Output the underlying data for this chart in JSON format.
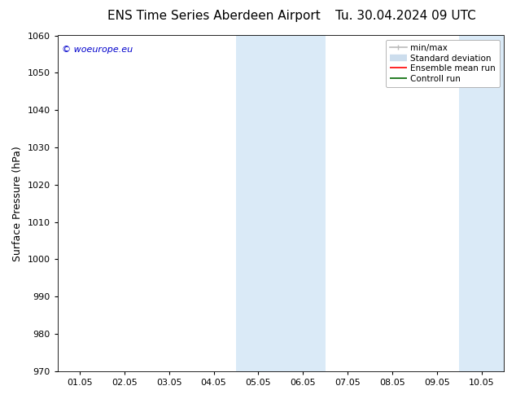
{
  "title_left": "ENS Time Series Aberdeen Airport",
  "title_right": "Tu. 30.04.2024 09 UTC",
  "ylabel": "Surface Pressure (hPa)",
  "ylim": [
    970,
    1060
  ],
  "yticks": [
    970,
    980,
    990,
    1000,
    1010,
    1020,
    1030,
    1040,
    1050,
    1060
  ],
  "xtick_labels": [
    "01.05",
    "02.05",
    "03.05",
    "04.05",
    "05.05",
    "06.05",
    "07.05",
    "08.05",
    "09.05",
    "10.05"
  ],
  "watermark": "© woeurope.eu",
  "watermark_color": "#0000cc",
  "bg_color": "#ffffff",
  "shaded_regions": [
    {
      "xstart": 3.5,
      "xend": 5.5,
      "color": "#daeaf7"
    },
    {
      "xstart": 8.5,
      "xend": 10.0,
      "color": "#daeaf7"
    }
  ],
  "legend_entries": [
    {
      "label": "min/max",
      "color": "#bbbbbb",
      "lw": 1.2
    },
    {
      "label": "Standard deviation",
      "color": "#ccdded",
      "lw": 6
    },
    {
      "label": "Ensemble mean run",
      "color": "#ff0000",
      "lw": 1.2
    },
    {
      "label": "Controll run",
      "color": "#006600",
      "lw": 1.2
    }
  ],
  "title_fontsize": 11,
  "tick_fontsize": 8,
  "ylabel_fontsize": 9,
  "legend_fontsize": 7.5
}
